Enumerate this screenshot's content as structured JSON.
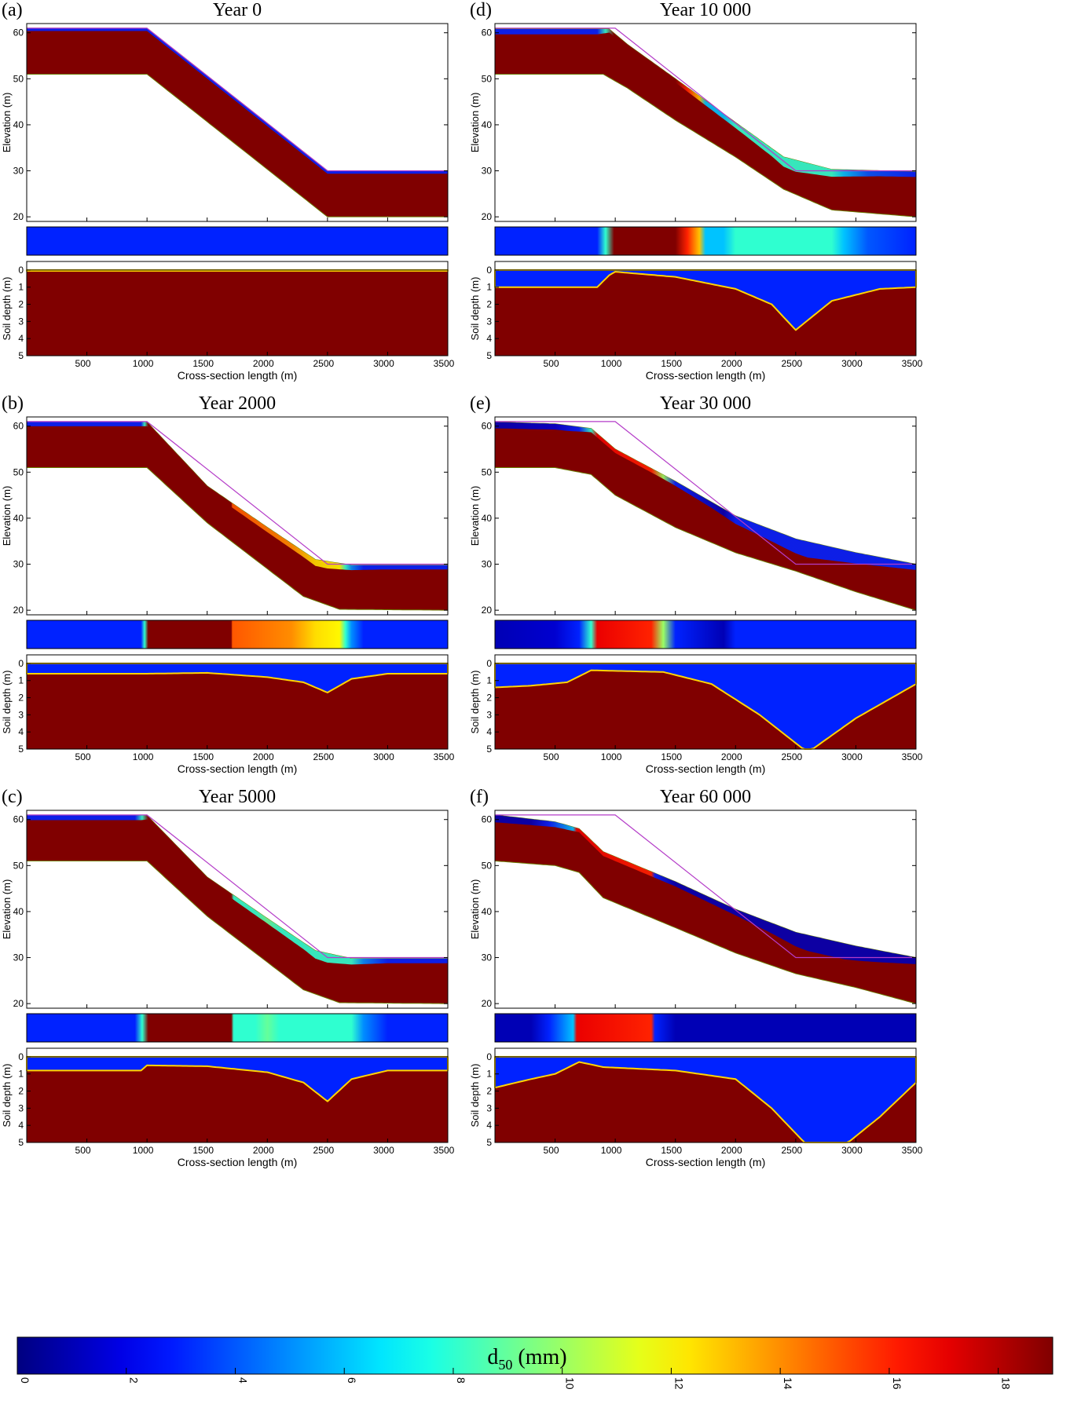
{
  "chart_data": {
    "type": "area",
    "colorbar": {
      "label_main": "d",
      "label_sub": "50",
      "label_unit": " (mm)",
      "min": 0,
      "max": 19,
      "ticks": [
        0,
        2,
        4,
        6,
        8,
        10,
        12,
        14,
        16,
        18
      ],
      "colormap": "jet"
    },
    "panels": [
      {
        "letter": "(a)",
        "title": "Year 0",
        "elev_ylabel": "Elevation (m)",
        "elev_yticks": [
          20,
          30,
          40,
          50,
          60
        ],
        "elev_ylim": [
          19,
          62
        ],
        "depth_ylabel": "Soil depth (m)",
        "depth_yticks": [
          0,
          1,
          2,
          3,
          4,
          5
        ],
        "depth_ylim": [
          -0.5,
          5
        ],
        "xlabel": "Cross-section length (m)",
        "xticks": [
          500,
          1000,
          1500,
          2000,
          2500,
          3000,
          3500
        ],
        "xlim": [
          0,
          3500
        ],
        "surface": [
          [
            0,
            61
          ],
          [
            1000,
            61
          ],
          [
            2500,
            30
          ],
          [
            3500,
            30
          ]
        ],
        "bedrock": [
          [
            0,
            51
          ],
          [
            1000,
            51
          ],
          [
            2500,
            20
          ],
          [
            3500,
            20
          ]
        ],
        "initial_surface": [
          [
            0,
            61
          ],
          [
            1000,
            61
          ],
          [
            2500,
            30
          ],
          [
            3500,
            30
          ]
        ],
        "coarse_depth": [
          [
            0,
            0.05
          ],
          [
            3500,
            0.05
          ]
        ],
        "surface_d50": [
          [
            0,
            3
          ],
          [
            3500,
            3
          ]
        ]
      },
      {
        "letter": "(b)",
        "title": "Year 2000",
        "elev_ylabel": "Elevation (m)",
        "elev_yticks": [
          20,
          30,
          40,
          50,
          60
        ],
        "elev_ylim": [
          19,
          62
        ],
        "depth_ylabel": "Soil depth (m)",
        "depth_yticks": [
          0,
          1,
          2,
          3,
          4,
          5
        ],
        "depth_ylim": [
          -0.5,
          5
        ],
        "xlabel": "Cross-section length (m)",
        "xticks": [
          500,
          1000,
          1500,
          2000,
          2500,
          3000,
          3500
        ],
        "xlim": [
          0,
          3500
        ],
        "surface": [
          [
            0,
            60.9
          ],
          [
            1000,
            60.9
          ],
          [
            1500,
            47
          ],
          [
            2000,
            38
          ],
          [
            2400,
            31
          ],
          [
            2700,
            29.8
          ],
          [
            3500,
            29.8
          ]
        ],
        "bedrock": [
          [
            0,
            51
          ],
          [
            1000,
            51
          ],
          [
            1500,
            39
          ],
          [
            2000,
            29
          ],
          [
            2300,
            23
          ],
          [
            2600,
            20.2
          ],
          [
            3500,
            20
          ]
        ],
        "initial_surface": [
          [
            0,
            61
          ],
          [
            1000,
            61
          ],
          [
            2500,
            30
          ],
          [
            3500,
            30
          ]
        ],
        "coarse_depth": [
          [
            0,
            0.6
          ],
          [
            1000,
            0.6
          ],
          [
            1500,
            0.55
          ],
          [
            2000,
            0.8
          ],
          [
            2300,
            1.1
          ],
          [
            2500,
            1.7
          ],
          [
            2700,
            0.9
          ],
          [
            3000,
            0.6
          ],
          [
            3500,
            0.6
          ]
        ],
        "surface_d50": [
          [
            0,
            3
          ],
          [
            950,
            3
          ],
          [
            980,
            8
          ],
          [
            1010,
            19
          ],
          [
            1700,
            19
          ],
          [
            1710,
            15
          ],
          [
            2200,
            14
          ],
          [
            2400,
            12.5
          ],
          [
            2600,
            12
          ],
          [
            2650,
            8
          ],
          [
            2700,
            5
          ],
          [
            2800,
            3
          ],
          [
            3500,
            3
          ]
        ]
      },
      {
        "letter": "(c)",
        "title": "Year 5000",
        "elev_ylabel": "Elevation (m)",
        "elev_yticks": [
          20,
          30,
          40,
          50,
          60
        ],
        "elev_ylim": [
          19,
          62
        ],
        "depth_ylabel": "Soil depth (m)",
        "depth_yticks": [
          0,
          1,
          2,
          3,
          4,
          5
        ],
        "depth_ylim": [
          -0.5,
          5
        ],
        "xlabel": "Cross-section length (m)",
        "xticks": [
          500,
          1000,
          1500,
          2000,
          2500,
          3000,
          3500
        ],
        "xlim": [
          0,
          3500
        ],
        "surface": [
          [
            0,
            60.9
          ],
          [
            1000,
            60.9
          ],
          [
            1500,
            47.5
          ],
          [
            2000,
            38.5
          ],
          [
            2400,
            31.5
          ],
          [
            2700,
            29.8
          ],
          [
            3500,
            29.8
          ]
        ],
        "bedrock": [
          [
            0,
            51
          ],
          [
            1000,
            51
          ],
          [
            1500,
            39
          ],
          [
            2000,
            29
          ],
          [
            2300,
            23
          ],
          [
            2600,
            20.2
          ],
          [
            3500,
            20
          ]
        ],
        "initial_surface": [
          [
            0,
            61
          ],
          [
            1000,
            61
          ],
          [
            2500,
            30
          ],
          [
            3500,
            30
          ]
        ],
        "coarse_depth": [
          [
            0,
            0.8
          ],
          [
            950,
            0.8
          ],
          [
            1000,
            0.5
          ],
          [
            1500,
            0.55
          ],
          [
            2000,
            0.9
          ],
          [
            2300,
            1.5
          ],
          [
            2500,
            2.6
          ],
          [
            2700,
            1.3
          ],
          [
            3000,
            0.8
          ],
          [
            3500,
            0.8
          ]
        ],
        "surface_d50": [
          [
            0,
            3
          ],
          [
            900,
            3
          ],
          [
            960,
            8
          ],
          [
            1010,
            19
          ],
          [
            1700,
            19
          ],
          [
            1720,
            8
          ],
          [
            1900,
            8
          ],
          [
            2000,
            9
          ],
          [
            2100,
            8
          ],
          [
            2700,
            8
          ],
          [
            2800,
            5
          ],
          [
            3000,
            3
          ],
          [
            3500,
            3
          ]
        ]
      },
      {
        "letter": "(d)",
        "title": "Year 10 000",
        "elev_ylabel": "Elevation (m)",
        "elev_yticks": [
          20,
          30,
          40,
          50,
          60
        ],
        "elev_ylim": [
          19,
          62
        ],
        "depth_ylabel": "Soil depth (m)",
        "depth_yticks": [
          0,
          1,
          2,
          3,
          4,
          5
        ],
        "depth_ylim": [
          -0.5,
          5
        ],
        "xlabel": "Cross-section length (m)",
        "xticks": [
          500,
          1000,
          1500,
          2000,
          2500,
          3000,
          3500
        ],
        "xlim": [
          0,
          3500
        ],
        "surface": [
          [
            0,
            60.8
          ],
          [
            950,
            60.8
          ],
          [
            1100,
            57.5
          ],
          [
            1500,
            50
          ],
          [
            2000,
            40.5
          ],
          [
            2400,
            33
          ],
          [
            2800,
            30.3
          ],
          [
            3500,
            29.8
          ]
        ],
        "bedrock": [
          [
            0,
            51
          ],
          [
            900,
            51
          ],
          [
            1100,
            48
          ],
          [
            1500,
            41
          ],
          [
            2000,
            33
          ],
          [
            2400,
            26
          ],
          [
            2800,
            21.5
          ],
          [
            3500,
            20
          ]
        ],
        "initial_surface": [
          [
            0,
            61
          ],
          [
            1000,
            61
          ],
          [
            2500,
            30
          ],
          [
            3500,
            30
          ]
        ],
        "coarse_depth": [
          [
            0,
            1.0
          ],
          [
            850,
            1.0
          ],
          [
            950,
            0.3
          ],
          [
            1000,
            0.1
          ],
          [
            1500,
            0.4
          ],
          [
            2000,
            1.1
          ],
          [
            2300,
            2.0
          ],
          [
            2500,
            3.5
          ],
          [
            2800,
            1.8
          ],
          [
            3200,
            1.1
          ],
          [
            3500,
            1.0
          ]
        ],
        "surface_d50": [
          [
            0,
            3
          ],
          [
            850,
            3
          ],
          [
            920,
            8
          ],
          [
            990,
            19
          ],
          [
            1500,
            19
          ],
          [
            1600,
            16
          ],
          [
            1700,
            13
          ],
          [
            1750,
            6
          ],
          [
            1900,
            6
          ],
          [
            2000,
            8
          ],
          [
            2800,
            8
          ],
          [
            2900,
            6
          ],
          [
            3100,
            4
          ],
          [
            3500,
            3
          ]
        ]
      },
      {
        "letter": "(e)",
        "title": "Year 30 000",
        "elev_ylabel": "Elevation (m)",
        "elev_yticks": [
          20,
          30,
          40,
          50,
          60
        ],
        "elev_ylim": [
          19,
          62
        ],
        "depth_ylabel": "Soil depth (m)",
        "depth_yticks": [
          0,
          1,
          2,
          3,
          4,
          5
        ],
        "depth_ylim": [
          -0.5,
          5
        ],
        "xlabel": "Cross-section length (m)",
        "xticks": [
          500,
          1000,
          1500,
          2000,
          2500,
          3000,
          3500
        ],
        "xlim": [
          0,
          3500
        ],
        "surface": [
          [
            0,
            60.9
          ],
          [
            500,
            60.5
          ],
          [
            800,
            59.5
          ],
          [
            1000,
            55
          ],
          [
            1500,
            48
          ],
          [
            2000,
            40.5
          ],
          [
            2500,
            35.5
          ],
          [
            3000,
            32.5
          ],
          [
            3500,
            30
          ]
        ],
        "bedrock": [
          [
            0,
            51
          ],
          [
            500,
            51
          ],
          [
            800,
            49.5
          ],
          [
            1000,
            45
          ],
          [
            1500,
            38
          ],
          [
            2000,
            32.5
          ],
          [
            2500,
            28.5
          ],
          [
            3000,
            24
          ],
          [
            3500,
            20
          ]
        ],
        "initial_surface": [
          [
            0,
            61
          ],
          [
            1000,
            61
          ],
          [
            2500,
            30
          ],
          [
            3500,
            30
          ]
        ],
        "coarse_depth": [
          [
            0,
            1.4
          ],
          [
            300,
            1.3
          ],
          [
            600,
            1.1
          ],
          [
            800,
            0.4
          ],
          [
            1400,
            0.5
          ],
          [
            1800,
            1.2
          ],
          [
            2200,
            3.0
          ],
          [
            2600,
            5.2
          ],
          [
            3000,
            3.2
          ],
          [
            3500,
            1.2
          ]
        ],
        "surface_d50": [
          [
            0,
            1
          ],
          [
            500,
            1.5
          ],
          [
            700,
            3
          ],
          [
            800,
            8
          ],
          [
            850,
            17
          ],
          [
            1300,
            16
          ],
          [
            1400,
            10
          ],
          [
            1500,
            3
          ],
          [
            1900,
            1
          ],
          [
            2000,
            3
          ],
          [
            3500,
            3
          ]
        ]
      },
      {
        "letter": "(f)",
        "title": "Year 60 000",
        "elev_ylabel": "Elevation (m)",
        "elev_yticks": [
          20,
          30,
          40,
          50,
          60
        ],
        "elev_ylim": [
          19,
          62
        ],
        "depth_ylabel": "Soil depth (m)",
        "depth_yticks": [
          0,
          1,
          2,
          3,
          4,
          5
        ],
        "depth_ylim": [
          -0.5,
          5
        ],
        "xlabel": "Cross-section length (m)",
        "xticks": [
          500,
          1000,
          1500,
          2000,
          2500,
          3000,
          3500
        ],
        "xlim": [
          0,
          3500
        ],
        "surface": [
          [
            0,
            61
          ],
          [
            500,
            59.5
          ],
          [
            700,
            58
          ],
          [
            900,
            53
          ],
          [
            1500,
            46.5
          ],
          [
            2000,
            40.5
          ],
          [
            2500,
            35.5
          ],
          [
            3000,
            32.5
          ],
          [
            3500,
            30
          ]
        ],
        "bedrock": [
          [
            0,
            51
          ],
          [
            500,
            50
          ],
          [
            700,
            48.5
          ],
          [
            900,
            43
          ],
          [
            1500,
            36.5
          ],
          [
            2000,
            31
          ],
          [
            2500,
            26.5
          ],
          [
            3000,
            23.5
          ],
          [
            3500,
            20
          ]
        ],
        "initial_surface": [
          [
            0,
            61
          ],
          [
            1000,
            61
          ],
          [
            2500,
            30
          ],
          [
            3500,
            30
          ]
        ],
        "coarse_depth": [
          [
            0,
            1.8
          ],
          [
            300,
            1.3
          ],
          [
            500,
            1.0
          ],
          [
            700,
            0.3
          ],
          [
            900,
            0.6
          ],
          [
            1500,
            0.8
          ],
          [
            2000,
            1.3
          ],
          [
            2300,
            3.0
          ],
          [
            2600,
            5.2
          ],
          [
            2900,
            5.2
          ],
          [
            3200,
            3.5
          ],
          [
            3500,
            1.5
          ]
        ],
        "surface_d50": [
          [
            0,
            1
          ],
          [
            300,
            1
          ],
          [
            450,
            3
          ],
          [
            650,
            6
          ],
          [
            680,
            17
          ],
          [
            1300,
            16
          ],
          [
            1330,
            3
          ],
          [
            1500,
            1
          ],
          [
            3500,
            1
          ]
        ]
      }
    ]
  }
}
